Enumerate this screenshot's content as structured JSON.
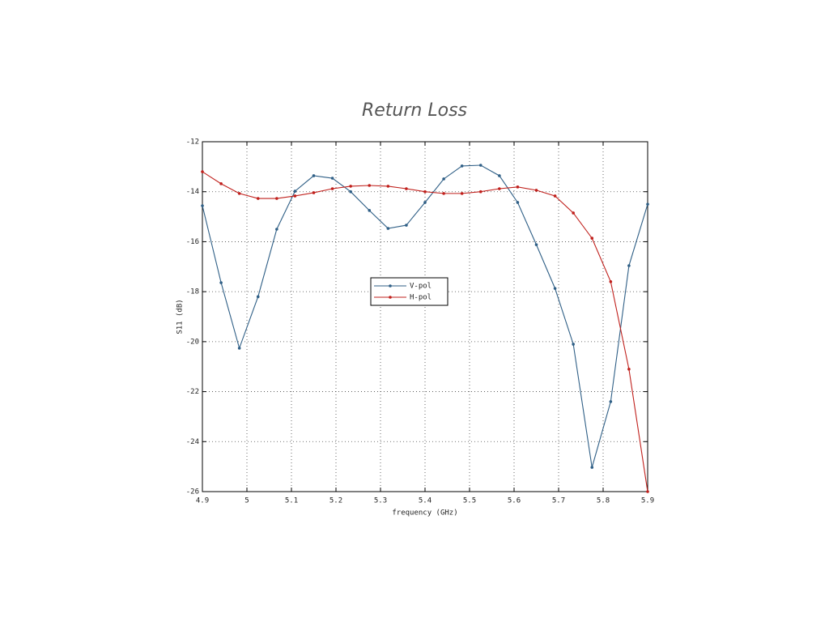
{
  "chart_data": {
    "type": "line",
    "title": "Return Loss",
    "xlabel": "frequency (GHz)",
    "ylabel": "S11 (dB)",
    "x": [
      4.9,
      4.942,
      4.983,
      5.025,
      5.067,
      5.108,
      5.15,
      5.192,
      5.233,
      5.275,
      5.317,
      5.358,
      5.4,
      5.442,
      5.483,
      5.525,
      5.567,
      5.608,
      5.65,
      5.692,
      5.733,
      5.775,
      5.817,
      5.858,
      5.9
    ],
    "series": [
      {
        "name": "V-pol",
        "color": "#2f5f86",
        "values": [
          -14.56,
          -17.64,
          -20.26,
          -18.2,
          -15.5,
          -13.98,
          -13.36,
          -13.46,
          -14.0,
          -14.75,
          -15.47,
          -15.34,
          -14.43,
          -13.49,
          -12.97,
          -12.94,
          -13.36,
          -14.43,
          -16.12,
          -17.87,
          -20.1,
          -25.03,
          -22.4,
          -16.96,
          -14.5
        ]
      },
      {
        "name": "H-pol",
        "color": "#c0201c",
        "values": [
          -13.2,
          -13.68,
          -14.07,
          -14.27,
          -14.27,
          -14.17,
          -14.04,
          -13.88,
          -13.78,
          -13.75,
          -13.78,
          -13.88,
          -14.0,
          -14.07,
          -14.07,
          -14.0,
          -13.88,
          -13.81,
          -13.94,
          -14.17,
          -14.85,
          -15.86,
          -17.6,
          -21.1,
          -26.0
        ]
      }
    ],
    "xlim": [
      4.9,
      5.9
    ],
    "xticks": [
      4.9,
      5,
      5.1,
      5.2,
      5.3,
      5.4,
      5.5,
      5.6,
      5.7,
      5.8,
      5.9
    ],
    "ylim": [
      -26,
      -12
    ],
    "yticks": [
      -26,
      -24,
      -22,
      -20,
      -18,
      -16,
      -14,
      -12
    ],
    "grid": true,
    "legend": "center"
  }
}
